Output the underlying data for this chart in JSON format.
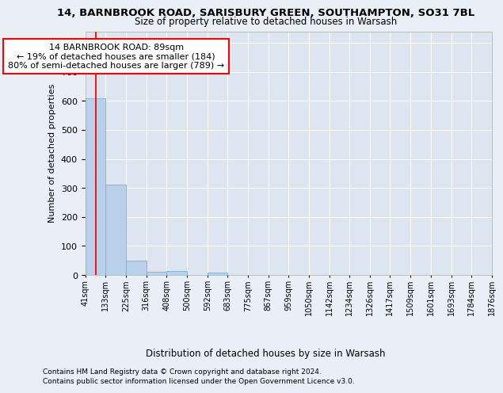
{
  "title": "14, BARNBROOK ROAD, SARISBURY GREEN, SOUTHAMPTON, SO31 7BL",
  "subtitle": "Size of property relative to detached houses in Warsash",
  "xlabel": "Distribution of detached houses by size in Warsash",
  "ylabel": "Number of detached properties",
  "footnote1": "Contains HM Land Registry data © Crown copyright and database right 2024.",
  "footnote2": "Contains public sector information licensed under the Open Government Licence v3.0.",
  "annotation_line1": "14 BARNBROOK ROAD: 89sqm",
  "annotation_line2": "← 19% of detached houses are smaller (184)",
  "annotation_line3": "80% of semi-detached houses are larger (789) →",
  "bar_color": "#b8d0ea",
  "bar_edge_color": "#7bafd4",
  "red_line_x": 89,
  "ylim": [
    0,
    840
  ],
  "yticks": [
    0,
    100,
    200,
    300,
    400,
    500,
    600,
    700,
    800
  ],
  "bins": [
    41,
    133,
    225,
    316,
    408,
    500,
    592,
    683,
    775,
    867,
    959,
    1050,
    1142,
    1234,
    1326,
    1417,
    1509,
    1601,
    1693,
    1784,
    1876
  ],
  "counts": [
    608,
    311,
    48,
    11,
    13,
    0,
    8,
    0,
    0,
    0,
    0,
    0,
    0,
    0,
    0,
    0,
    0,
    0,
    0,
    0
  ],
  "background_color": "#eaeff6",
  "plot_background": "#dde6f0",
  "grid_color": "#ffffff"
}
